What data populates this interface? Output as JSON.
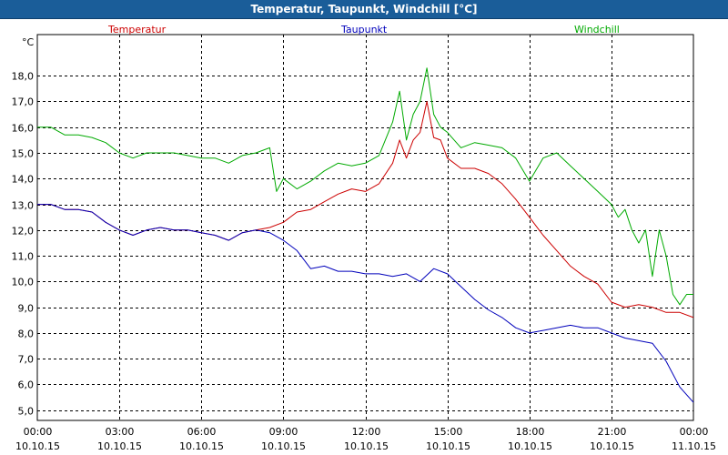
{
  "window": {
    "title": "Temperatur, Taupunkt, Windchill [°C]"
  },
  "colors": {
    "titlebar": "#1a5d99",
    "temperatur": "#cc0000",
    "taupunkt": "#0000bb",
    "windchill": "#00aa00",
    "grid": "#000000"
  },
  "chart_data": {
    "type": "line",
    "title": "Temperatur, Taupunkt, Windchill [°C]",
    "ylabel": "°C",
    "xlabel": "",
    "ylim": [
      4.6,
      19.6
    ],
    "xlim": [
      0,
      24
    ],
    "grid": true,
    "legend_placement": "top",
    "yticks": [
      "5,0",
      "6,0",
      "7,0",
      "8,0",
      "9,0",
      "10,0",
      "11,0",
      "12,0",
      "13,0",
      "14,0",
      "15,0",
      "16,0",
      "17,0",
      "18,0"
    ],
    "xticks": [
      {
        "time": "00:00",
        "date": "10.10.15"
      },
      {
        "time": "03:00",
        "date": "10.10.15"
      },
      {
        "time": "06:00",
        "date": "10.10.15"
      },
      {
        "time": "09:00",
        "date": "10.10.15"
      },
      {
        "time": "12:00",
        "date": "10.10.15"
      },
      {
        "time": "15:00",
        "date": "10.10.15"
      },
      {
        "time": "18:00",
        "date": "10.10.15"
      },
      {
        "time": "21:00",
        "date": "10.10.15"
      },
      {
        "time": "00:00",
        "date": "11.10.15"
      }
    ],
    "series": [
      {
        "name": "Temperatur",
        "x": [
          0,
          0.5,
          1,
          1.5,
          2,
          2.5,
          3,
          3.5,
          4,
          4.5,
          5,
          5.5,
          6,
          6.5,
          7,
          7.5,
          8,
          8.5,
          9,
          9.5,
          10,
          10.5,
          11,
          11.5,
          12,
          12.5,
          13,
          13.25,
          13.5,
          13.75,
          14,
          14.25,
          14.5,
          14.75,
          15,
          15.5,
          16,
          16.5,
          17,
          17.5,
          18,
          18.5,
          19,
          19.5,
          20,
          20.5,
          21,
          21.5,
          22,
          22.5,
          23,
          23.5,
          24
        ],
        "values": [
          13.0,
          13.0,
          12.8,
          12.8,
          12.7,
          12.3,
          12.0,
          11.8,
          12.0,
          12.1,
          12.0,
          12.0,
          11.9,
          11.8,
          11.6,
          11.9,
          12.0,
          12.1,
          12.3,
          12.7,
          12.8,
          13.1,
          13.4,
          13.6,
          13.5,
          13.8,
          14.6,
          15.5,
          14.8,
          15.5,
          15.8,
          17.0,
          15.6,
          15.5,
          14.8,
          14.4,
          14.4,
          14.2,
          13.8,
          13.2,
          12.5,
          11.8,
          11.2,
          10.6,
          10.2,
          9.9,
          9.2,
          9.0,
          9.1,
          9.0,
          8.8,
          8.8,
          8.6
        ]
      },
      {
        "name": "Taupunkt",
        "x": [
          0,
          0.5,
          1,
          1.5,
          2,
          2.5,
          3,
          3.5,
          4,
          4.5,
          5,
          5.5,
          6,
          6.5,
          7,
          7.5,
          8,
          8.5,
          9,
          9.5,
          10,
          10.5,
          11,
          11.5,
          12,
          12.5,
          13,
          13.5,
          14,
          14.5,
          15,
          15.5,
          16,
          16.5,
          17,
          17.5,
          18,
          18.5,
          19,
          19.5,
          20,
          20.5,
          21,
          21.5,
          22,
          22.5,
          23,
          23.5,
          24
        ],
        "values": [
          13.0,
          13.0,
          12.8,
          12.8,
          12.7,
          12.3,
          12.0,
          11.8,
          12.0,
          12.1,
          12.0,
          12.0,
          11.9,
          11.8,
          11.6,
          11.9,
          12.0,
          11.9,
          11.6,
          11.2,
          10.5,
          10.6,
          10.4,
          10.4,
          10.3,
          10.3,
          10.2,
          10.3,
          10.0,
          10.5,
          10.3,
          9.8,
          9.3,
          8.9,
          8.6,
          8.2,
          8.0,
          8.1,
          8.2,
          8.3,
          8.2,
          8.2,
          8.0,
          7.8,
          7.7,
          7.6,
          6.9,
          5.9,
          5.3
        ]
      },
      {
        "name": "Windchill",
        "x": [
          0,
          0.5,
          1,
          1.5,
          2,
          2.5,
          3,
          3.5,
          4,
          4.5,
          5,
          5.5,
          6,
          6.5,
          7,
          7.5,
          8,
          8.5,
          8.75,
          9,
          9.5,
          10,
          10.5,
          11,
          11.5,
          12,
          12.5,
          13,
          13.25,
          13.5,
          13.75,
          14,
          14.25,
          14.5,
          14.75,
          15,
          15.5,
          16,
          16.5,
          17,
          17.5,
          18,
          18.5,
          19,
          19.5,
          20,
          20.5,
          21,
          21.25,
          21.5,
          21.75,
          22,
          22.25,
          22.5,
          22.75,
          23,
          23.25,
          23.5,
          23.75,
          24
        ],
        "values": [
          16.0,
          16.0,
          15.7,
          15.7,
          15.6,
          15.4,
          15.0,
          14.8,
          15.0,
          15.0,
          15.0,
          14.9,
          14.8,
          14.8,
          14.6,
          14.9,
          15.0,
          15.2,
          13.5,
          14.0,
          13.6,
          13.9,
          14.3,
          14.6,
          14.5,
          14.6,
          14.9,
          16.2,
          17.4,
          15.5,
          16.5,
          17.0,
          18.3,
          16.5,
          16.0,
          15.8,
          15.2,
          15.4,
          15.3,
          15.2,
          14.8,
          13.9,
          14.8,
          15.0,
          14.5,
          14.0,
          13.5,
          13.0,
          12.5,
          12.8,
          12.0,
          11.5,
          12.0,
          10.2,
          12.0,
          11.0,
          9.5,
          9.1,
          9.5,
          9.5
        ]
      }
    ]
  }
}
